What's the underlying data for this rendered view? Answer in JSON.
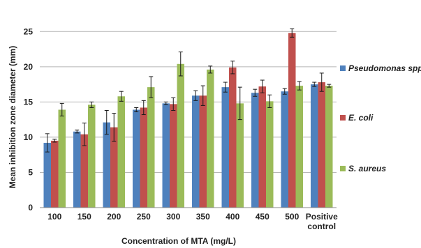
{
  "chart_data": {
    "type": "bar",
    "xlabel": "Concentration of MTA (mg/L)",
    "ylabel": "Mean inhibition zone diameter (mm)",
    "ylim": [
      0,
      27.5
    ],
    "yticks": [
      0,
      5,
      10,
      15,
      20,
      25
    ],
    "grid": "horizontal",
    "legend_position": "right",
    "categories": [
      "100",
      "150",
      "200",
      "250",
      "300",
      "350",
      "400",
      "450",
      "500",
      "Positive control"
    ],
    "category_lines": [
      [
        "100"
      ],
      [
        "150"
      ],
      [
        "200"
      ],
      [
        "250"
      ],
      [
        "300"
      ],
      [
        "350"
      ],
      [
        "400"
      ],
      [
        "450"
      ],
      [
        "500"
      ],
      [
        "Positive",
        "control"
      ]
    ],
    "series": [
      {
        "name": "Pseudomonas spp.",
        "color": "#4f81bd",
        "values": [
          9.2,
          10.8,
          12.1,
          13.9,
          14.8,
          15.9,
          17.1,
          16.3,
          16.5,
          17.5
        ],
        "errors": [
          1.3,
          0.2,
          1.7,
          0.3,
          0.2,
          0.7,
          0.7,
          0.5,
          0.4,
          0.3
        ]
      },
      {
        "name": "E. coli",
        "color": "#c0504d",
        "values": [
          9.5,
          10.4,
          11.4,
          14.2,
          14.7,
          15.9,
          19.9,
          17.2,
          24.8,
          17.8
        ],
        "errors": [
          0.2,
          1.6,
          2.0,
          1.0,
          0.9,
          1.4,
          0.9,
          0.9,
          0.6,
          1.3
        ]
      },
      {
        "name": "S. aureus",
        "color": "#9bbb59",
        "values": [
          13.9,
          14.6,
          15.8,
          17.1,
          20.4,
          19.6,
          14.8,
          15.1,
          17.3,
          17.3
        ],
        "errors": [
          0.9,
          0.4,
          0.7,
          1.5,
          1.7,
          0.5,
          2.3,
          0.9,
          0.6,
          0.2
        ]
      }
    ]
  }
}
